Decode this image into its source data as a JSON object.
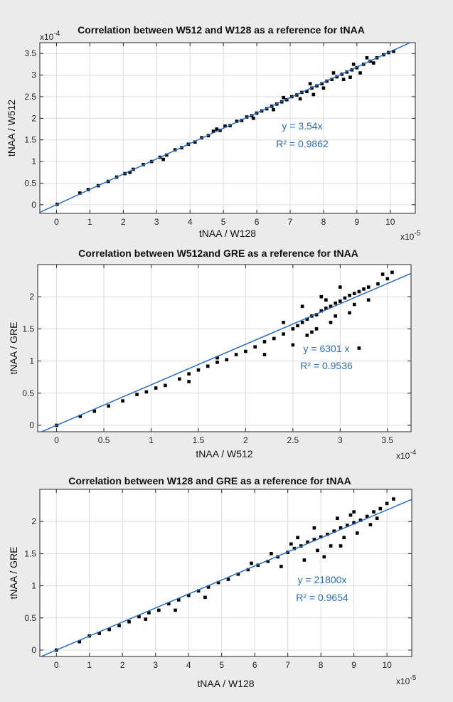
{
  "chart_data": [
    {
      "type": "scatter",
      "title": "Correlation between W512 and W128 as a reference for tNAA",
      "xlabel": "tNAA / W128",
      "ylabel": "tNAA / W512",
      "x_exponent_label": "x10",
      "x_exponent": "-5",
      "y_exponent_label": "x10",
      "y_exponent": "-4",
      "x_scale": 1e-05,
      "y_scale": 0.0001,
      "xlim": [
        -0.5,
        10.75
      ],
      "ylim": [
        -0.2,
        3.75
      ],
      "xticks": [
        0,
        1,
        2,
        3,
        4,
        5,
        6,
        7,
        8,
        9,
        10
      ],
      "xtick_labels": [
        "0",
        "1",
        "2",
        "3",
        "4",
        "5",
        "6",
        "7",
        "8",
        "9",
        "10"
      ],
      "yticks": [
        0,
        0.5,
        1,
        1.5,
        2,
        2.5,
        3,
        3.5
      ],
      "ytick_labels": [
        "0",
        "0.5",
        "1",
        "1.5",
        "2",
        "2.5",
        "3",
        "3.5"
      ],
      "grid": true,
      "fit": {
        "slope": 3.54,
        "intercept": 0,
        "equation_text": "y = 3.54x",
        "r2_text": "R² = 0.9862"
      },
      "fit_color": "#2a6ebb",
      "point_color": "#000000",
      "points": [
        [
          0.02,
          0.01
        ],
        [
          0.7,
          0.27
        ],
        [
          0.95,
          0.35
        ],
        [
          1.25,
          0.44
        ],
        [
          1.55,
          0.54
        ],
        [
          1.8,
          0.64
        ],
        [
          2.05,
          0.72
        ],
        [
          2.3,
          0.82
        ],
        [
          2.6,
          0.93
        ],
        [
          2.85,
          1.0
        ],
        [
          3.1,
          1.1
        ],
        [
          3.3,
          1.15
        ],
        [
          3.55,
          1.27
        ],
        [
          3.75,
          1.32
        ],
        [
          3.95,
          1.4
        ],
        [
          4.15,
          1.45
        ],
        [
          4.35,
          1.55
        ],
        [
          4.55,
          1.6
        ],
        [
          4.7,
          1.7
        ],
        [
          4.9,
          1.72
        ],
        [
          5.05,
          1.82
        ],
        [
          5.2,
          1.83
        ],
        [
          5.4,
          1.93
        ],
        [
          5.55,
          1.95
        ],
        [
          5.7,
          2.03
        ],
        [
          5.85,
          2.06
        ],
        [
          6.0,
          2.12
        ],
        [
          6.15,
          2.17
        ],
        [
          6.3,
          2.22
        ],
        [
          6.45,
          2.28
        ],
        [
          6.6,
          2.33
        ],
        [
          6.75,
          2.38
        ],
        [
          6.9,
          2.43
        ],
        [
          7.05,
          2.5
        ],
        [
          7.2,
          2.54
        ],
        [
          7.35,
          2.6
        ],
        [
          7.5,
          2.62
        ],
        [
          7.65,
          2.7
        ],
        [
          7.8,
          2.75
        ],
        [
          7.95,
          2.8
        ],
        [
          8.1,
          2.86
        ],
        [
          8.25,
          2.9
        ],
        [
          8.4,
          2.96
        ],
        [
          8.55,
          3.02
        ],
        [
          8.7,
          3.07
        ],
        [
          8.85,
          3.12
        ],
        [
          9.0,
          3.17
        ],
        [
          9.2,
          3.25
        ],
        [
          9.4,
          3.32
        ],
        [
          9.6,
          3.4
        ],
        [
          9.8,
          3.47
        ],
        [
          9.95,
          3.52
        ],
        [
          7.3,
          2.45
        ],
        [
          7.6,
          2.8
        ],
        [
          8.0,
          2.7
        ],
        [
          8.3,
          3.05
        ],
        [
          8.6,
          2.9
        ],
        [
          8.9,
          3.25
        ],
        [
          9.1,
          3.05
        ],
        [
          9.3,
          3.4
        ],
        [
          6.5,
          2.2
        ],
        [
          6.8,
          2.48
        ],
        [
          7.7,
          2.55
        ],
        [
          8.8,
          2.95
        ],
        [
          9.5,
          3.28
        ],
        [
          3.2,
          1.05
        ],
        [
          4.8,
          1.75
        ],
        [
          5.9,
          2.0
        ],
        [
          2.2,
          0.75
        ],
        [
          10.1,
          3.55
        ]
      ]
    },
    {
      "type": "scatter",
      "title": "Correlation between W512and GRE as a reference for tNAA",
      "xlabel": "tNAA / W512",
      "ylabel": "tNAA / GRE",
      "x_exponent_label": "x10",
      "x_exponent": "-4",
      "y_exponent_label": "",
      "y_exponent": "",
      "x_scale": 0.0001,
      "y_scale": 1,
      "xlim": [
        -0.2,
        3.75
      ],
      "ylim": [
        -0.1,
        2.5
      ],
      "xticks": [
        0,
        0.5,
        1,
        1.5,
        2,
        2.5,
        3,
        3.5
      ],
      "xtick_labels": [
        "0",
        "0.5",
        "1",
        "1.5",
        "2",
        "2.5",
        "3",
        "3.5"
      ],
      "yticks": [
        0,
        0.5,
        1,
        1.5,
        2
      ],
      "ytick_labels": [
        "0",
        "0.5",
        "1",
        "1.5",
        "2"
      ],
      "grid": true,
      "fit": {
        "slope": 6301,
        "intercept": 0,
        "equation_text": "y = 6301 x",
        "r2_text": "R² = 0.9536"
      },
      "fit_color": "#2a6ebb",
      "point_color": "#000000",
      "points": [
        [
          0.0,
          0.0
        ],
        [
          0.25,
          0.14
        ],
        [
          0.4,
          0.22
        ],
        [
          0.55,
          0.3
        ],
        [
          0.7,
          0.38
        ],
        [
          0.85,
          0.48
        ],
        [
          0.95,
          0.52
        ],
        [
          1.05,
          0.58
        ],
        [
          1.15,
          0.62
        ],
        [
          1.3,
          0.72
        ],
        [
          1.4,
          0.8
        ],
        [
          1.5,
          0.86
        ],
        [
          1.6,
          0.92
        ],
        [
          1.7,
          0.98
        ],
        [
          1.8,
          1.02
        ],
        [
          1.9,
          1.1
        ],
        [
          2.0,
          1.15
        ],
        [
          2.1,
          1.22
        ],
        [
          2.2,
          1.3
        ],
        [
          2.3,
          1.35
        ],
        [
          2.4,
          1.42
        ],
        [
          2.5,
          1.5
        ],
        [
          2.55,
          1.55
        ],
        [
          2.6,
          1.6
        ],
        [
          2.65,
          1.65
        ],
        [
          2.7,
          1.7
        ],
        [
          2.75,
          1.72
        ],
        [
          2.8,
          1.78
        ],
        [
          2.85,
          1.82
        ],
        [
          2.9,
          1.85
        ],
        [
          2.95,
          1.9
        ],
        [
          3.0,
          1.93
        ],
        [
          3.05,
          1.98
        ],
        [
          3.1,
          2.02
        ],
        [
          3.15,
          2.05
        ],
        [
          3.2,
          2.08
        ],
        [
          3.25,
          2.12
        ],
        [
          3.3,
          2.15
        ],
        [
          3.4,
          2.2
        ],
        [
          3.5,
          2.28
        ],
        [
          2.5,
          1.25
        ],
        [
          2.7,
          1.45
        ],
        [
          2.9,
          1.6
        ],
        [
          3.1,
          1.75
        ],
        [
          3.2,
          1.2
        ],
        [
          2.6,
          1.85
        ],
        [
          2.8,
          2.0
        ],
        [
          3.0,
          2.15
        ],
        [
          3.3,
          1.95
        ],
        [
          2.4,
          1.6
        ],
        [
          2.2,
          1.1
        ],
        [
          1.7,
          1.05
        ],
        [
          1.4,
          0.68
        ],
        [
          3.45,
          2.35
        ],
        [
          3.55,
          2.38
        ],
        [
          2.75,
          1.5
        ],
        [
          2.95,
          1.7
        ],
        [
          3.15,
          1.88
        ],
        [
          2.65,
          1.4
        ],
        [
          2.85,
          1.95
        ]
      ]
    },
    {
      "type": "scatter",
      "title": "Correlation between W128 and GRE as a reference for tNAA",
      "xlabel": "tNAA / W128",
      "ylabel": "tNAA / GRE",
      "x_exponent_label": "x10",
      "x_exponent": "-5",
      "y_exponent_label": "",
      "y_exponent": "",
      "x_scale": 1e-05,
      "y_scale": 1,
      "xlim": [
        -0.5,
        10.75
      ],
      "ylim": [
        -0.1,
        2.5
      ],
      "xticks": [
        0,
        1,
        2,
        3,
        4,
        5,
        6,
        7,
        8,
        9,
        10
      ],
      "xtick_labels": [
        "0",
        "1",
        "2",
        "3",
        "4",
        "5",
        "6",
        "7",
        "8",
        "9",
        "10"
      ],
      "yticks": [
        0,
        0.5,
        1,
        1.5,
        2
      ],
      "ytick_labels": [
        "0",
        "0.5",
        "1",
        "1.5",
        "2"
      ],
      "grid": true,
      "fit": {
        "slope": 21800,
        "intercept": 0,
        "equation_text": "y = 21800x",
        "r2_text": "R² = 0.9654"
      },
      "fit_color": "#2a6ebb",
      "point_color": "#000000",
      "points": [
        [
          0.0,
          0.0
        ],
        [
          0.7,
          0.13
        ],
        [
          1.0,
          0.22
        ],
        [
          1.3,
          0.26
        ],
        [
          1.6,
          0.32
        ],
        [
          1.9,
          0.38
        ],
        [
          2.2,
          0.44
        ],
        [
          2.5,
          0.52
        ],
        [
          2.8,
          0.58
        ],
        [
          3.1,
          0.62
        ],
        [
          3.4,
          0.72
        ],
        [
          3.7,
          0.78
        ],
        [
          4.0,
          0.85
        ],
        [
          4.3,
          0.92
        ],
        [
          4.6,
          0.98
        ],
        [
          4.9,
          1.05
        ],
        [
          5.2,
          1.1
        ],
        [
          5.5,
          1.18
        ],
        [
          5.8,
          1.25
        ],
        [
          6.1,
          1.32
        ],
        [
          6.4,
          1.38
        ],
        [
          6.7,
          1.45
        ],
        [
          7.0,
          1.52
        ],
        [
          7.2,
          1.58
        ],
        [
          7.4,
          1.62
        ],
        [
          7.6,
          1.68
        ],
        [
          7.8,
          1.72
        ],
        [
          8.0,
          1.76
        ],
        [
          8.2,
          1.8
        ],
        [
          8.4,
          1.85
        ],
        [
          8.6,
          1.9
        ],
        [
          8.8,
          1.94
        ],
        [
          9.0,
          1.98
        ],
        [
          9.2,
          2.02
        ],
        [
          9.4,
          2.08
        ],
        [
          9.6,
          2.15
        ],
        [
          9.8,
          2.2
        ],
        [
          10.0,
          2.28
        ],
        [
          7.5,
          1.4
        ],
        [
          7.9,
          1.55
        ],
        [
          8.3,
          1.62
        ],
        [
          8.7,
          1.75
        ],
        [
          9.1,
          1.82
        ],
        [
          7.3,
          1.75
        ],
        [
          7.8,
          1.9
        ],
        [
          8.5,
          2.05
        ],
        [
          9.0,
          2.15
        ],
        [
          6.8,
          1.3
        ],
        [
          5.9,
          1.35
        ],
        [
          4.5,
          0.82
        ],
        [
          3.6,
          0.62
        ],
        [
          8.1,
          1.45
        ],
        [
          8.9,
          2.1
        ],
        [
          9.5,
          1.95
        ],
        [
          10.2,
          2.35
        ],
        [
          7.1,
          1.65
        ],
        [
          6.5,
          1.5
        ],
        [
          8.6,
          1.62
        ],
        [
          2.7,
          0.48
        ],
        [
          9.7,
          2.05
        ]
      ]
    }
  ]
}
